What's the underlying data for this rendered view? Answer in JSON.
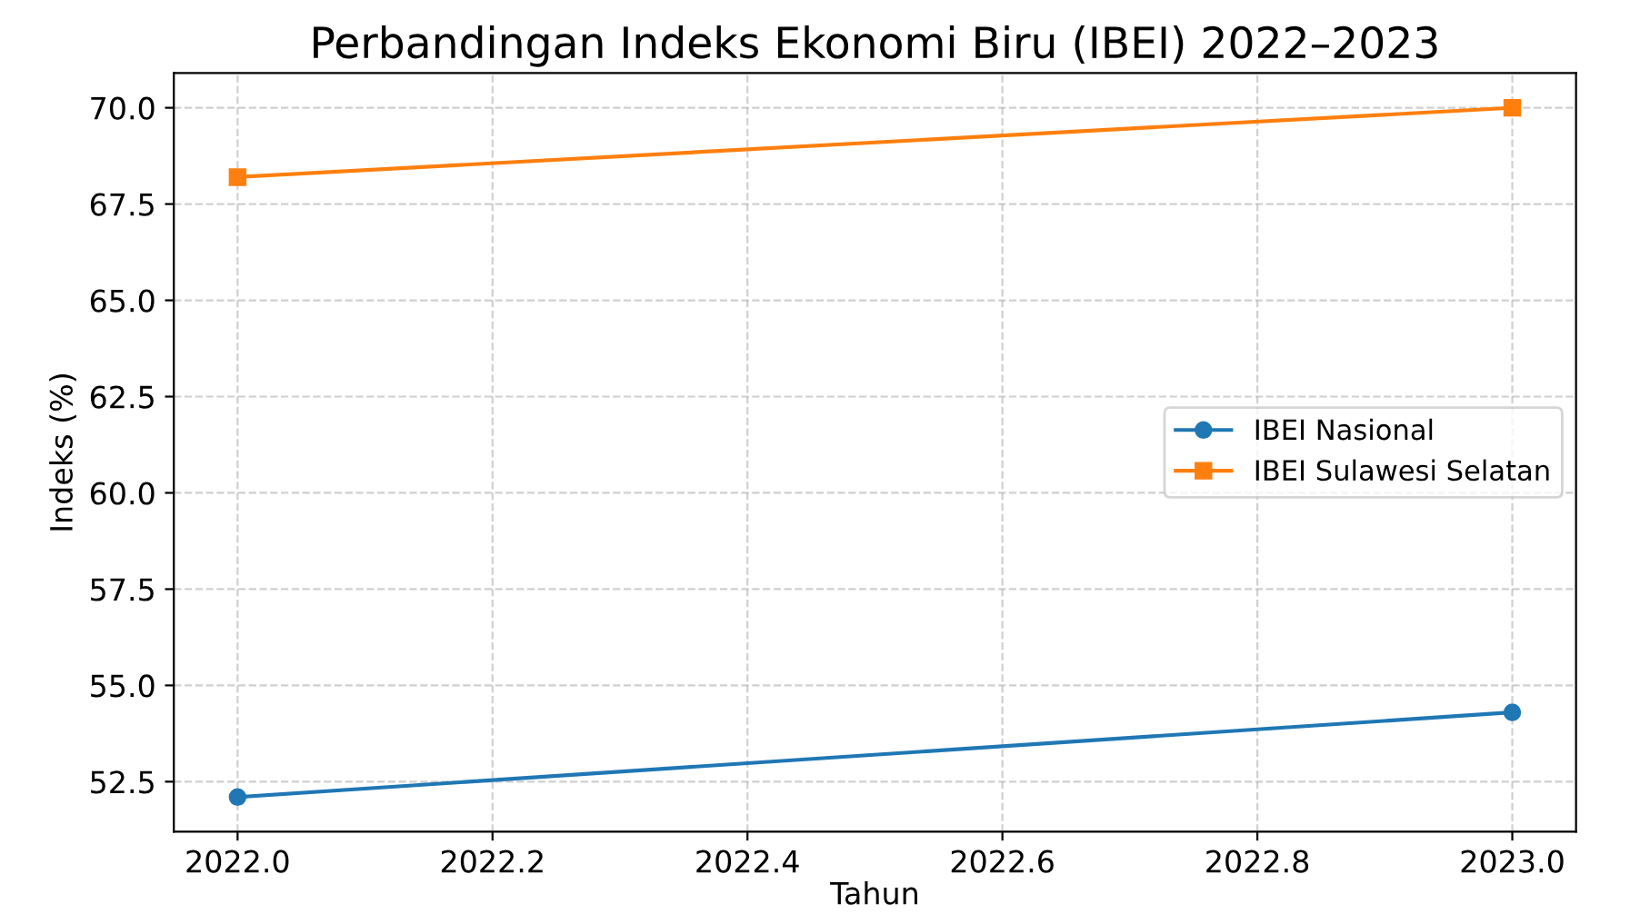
{
  "chart_data": {
    "type": "line",
    "title": "Perbandingan Indeks Ekonomi Biru (IBEI) 2022–2023",
    "xlabel": "Tahun",
    "ylabel": "Indeks (%)",
    "x": [
      2022,
      2023
    ],
    "series": [
      {
        "name": "IBEI Nasional",
        "color": "#1f77b4",
        "values": [
          52.1,
          54.3
        ],
        "marker": "circle"
      },
      {
        "name": "IBEI Sulawesi Selatan",
        "color": "#ff7f0e",
        "values": [
          68.2,
          70.0
        ],
        "marker": "square"
      }
    ],
    "xlim": [
      2021.95,
      2023.05
    ],
    "xticks": [
      {
        "value": 2022,
        "label": "2022.0"
      },
      {
        "value": 2022.2,
        "label": "2022.2"
      },
      {
        "value": 2022.4,
        "label": "2022.4"
      },
      {
        "value": 2022.6,
        "label": "2022.6"
      },
      {
        "value": 2022.8,
        "label": "2022.8"
      },
      {
        "value": 2023,
        "label": "2023.0"
      }
    ],
    "ylim": [
      51.2,
      70.9
    ],
    "yticks": [
      {
        "value": 52.5,
        "label": "52.5"
      },
      {
        "value": 55,
        "label": "55.0"
      },
      {
        "value": 57.5,
        "label": "57.5"
      },
      {
        "value": 60,
        "label": "60.0"
      },
      {
        "value": 62.5,
        "label": "62.5"
      },
      {
        "value": 65,
        "label": "65.0"
      },
      {
        "value": 67.5,
        "label": "67.5"
      },
      {
        "value": 70,
        "label": "70.0"
      }
    ],
    "grid": true,
    "legend": "right",
    "line_style": "solid"
  }
}
